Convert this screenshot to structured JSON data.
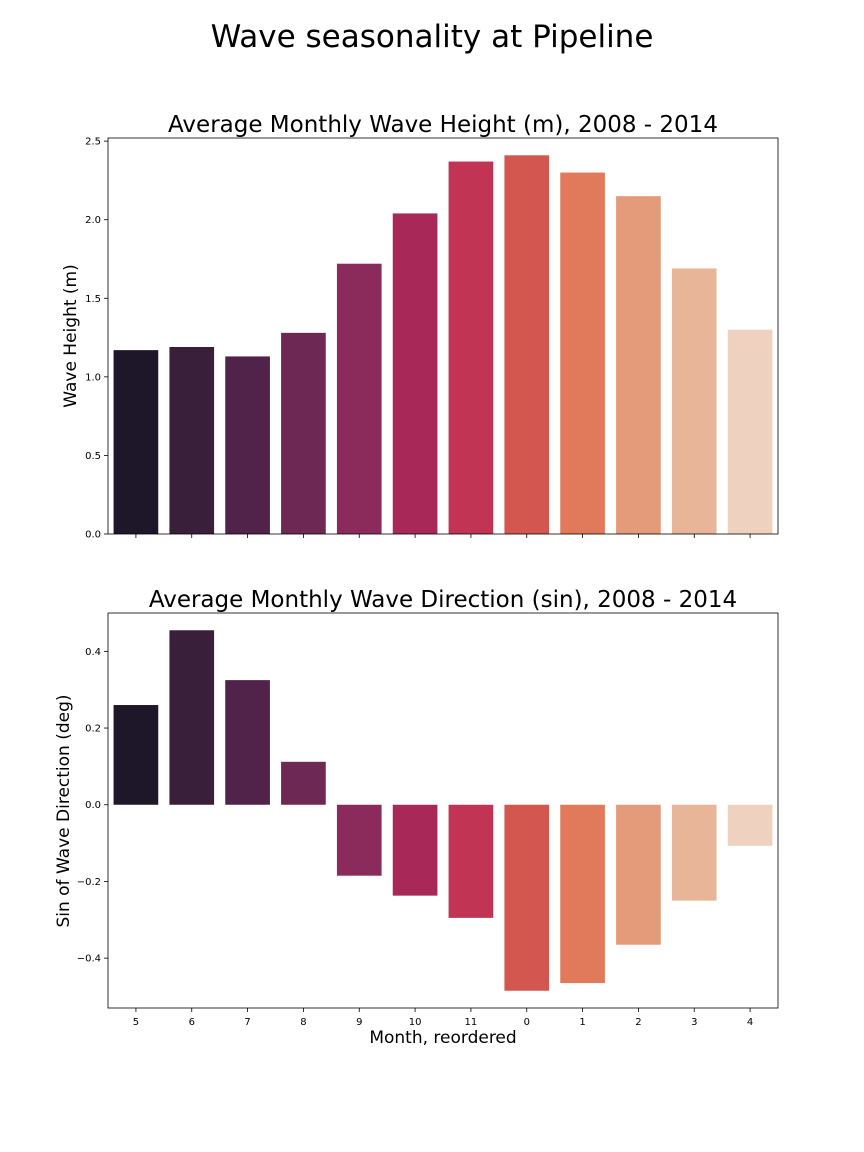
{
  "figure": {
    "suptitle": "Wave seasonality at Pipeline"
  },
  "chart_data": [
    {
      "type": "bar",
      "title": "Average Monthly Wave Height (m), 2008 - 2014",
      "xlabel": "",
      "ylabel": "Wave Height (m)",
      "categories": [
        "5",
        "6",
        "7",
        "8",
        "9",
        "10",
        "11",
        "0",
        "1",
        "2",
        "3",
        "4"
      ],
      "values": [
        1.17,
        1.19,
        1.13,
        1.28,
        1.72,
        2.04,
        2.37,
        2.41,
        2.3,
        2.15,
        1.69,
        1.3
      ],
      "ylim": [
        0,
        2.52
      ],
      "yticks": [
        0.0,
        0.5,
        1.0,
        1.5,
        2.0,
        2.5
      ],
      "ytick_labels": [
        "0.0",
        "0.5",
        "1.0",
        "1.5",
        "2.0",
        "2.5"
      ],
      "show_xtick_labels": false,
      "grid": false,
      "legend": "none"
    },
    {
      "type": "bar",
      "title": "Average Monthly Wave Direction (sin), 2008 - 2014",
      "xlabel": "Month, reordered",
      "ylabel": "Sin of Wave Direction (deg)",
      "categories": [
        "5",
        "6",
        "7",
        "8",
        "9",
        "10",
        "11",
        "0",
        "1",
        "2",
        "3",
        "4"
      ],
      "values": [
        0.26,
        0.455,
        0.325,
        0.112,
        -0.185,
        -0.237,
        -0.295,
        -0.485,
        -0.465,
        -0.365,
        -0.25,
        -0.107
      ],
      "ylim": [
        -0.53,
        0.5
      ],
      "yticks": [
        -0.4,
        -0.2,
        0.0,
        0.2,
        0.4
      ],
      "ytick_labels": [
        "−0.4",
        "−0.2",
        "0.0",
        "0.2",
        "0.4"
      ],
      "show_xtick_labels": true,
      "grid": false,
      "legend": "none"
    }
  ],
  "colors": {
    "palette": [
      "#1e1629",
      "#3a1f3b",
      "#52234a",
      "#6d2954",
      "#8b2b5c",
      "#a82858",
      "#c13453",
      "#d4574f",
      "#e07a5a",
      "#e49b79",
      "#e8b598",
      "#efd1bf"
    ],
    "axis": "#000000",
    "text": "#000000"
  }
}
